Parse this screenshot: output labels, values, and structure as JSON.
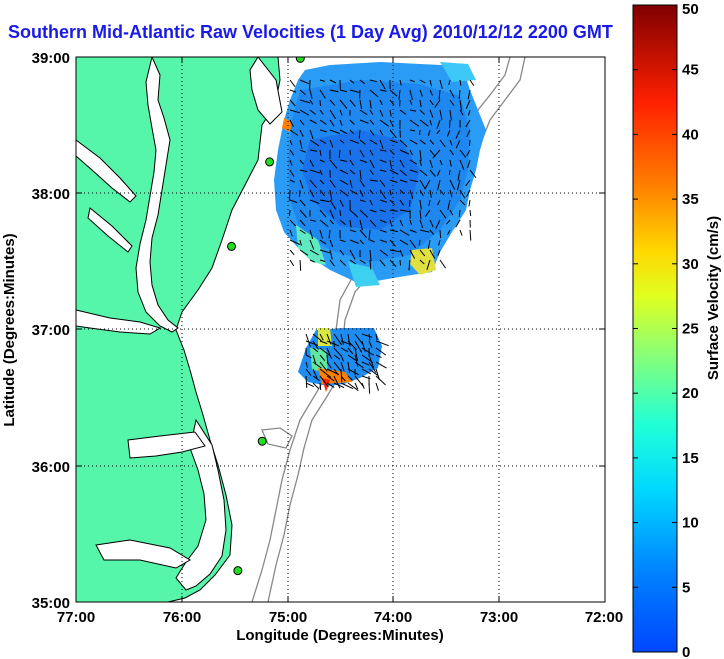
{
  "title": "Southern Mid-Atlantic Raw Velocities (1 Day Avg) 2010/12/12 2200 GMT",
  "xlabel": "Longitude (Degrees:Minutes)",
  "ylabel": "Latitude (Degrees:Minutes)",
  "colorbar_label": "Surface Velocity (cm/s)",
  "x_ticks": [
    "77:00",
    "76:00",
    "75:00",
    "74:00",
    "73:00",
    "72:00"
  ],
  "y_ticks": [
    "39:00",
    "38:00",
    "37:00",
    "36:00",
    "35:00"
  ],
  "colorbar_ticks": [
    "0",
    "5",
    "10",
    "15",
    "20",
    "25",
    "30",
    "35",
    "40",
    "45",
    "50"
  ],
  "colors": {
    "land": "#55f5aa",
    "ocean": "#ffffff",
    "title": "#1a1ae6",
    "grid": "#000000",
    "bathy": "#888888",
    "station": "#22dd22"
  },
  "chart_data": {
    "type": "heatmap",
    "title": "Southern Mid-Atlantic Raw Velocities (1 Day Avg) 2010/12/12 2200 GMT",
    "xlabel": "Longitude (Degrees:Minutes)",
    "ylabel": "Latitude (Degrees:Minutes)",
    "xlim": [
      -77,
      -72
    ],
    "ylim": [
      35,
      39
    ],
    "colorbar": {
      "label": "Surface Velocity (cm/s)",
      "range": [
        0,
        50
      ],
      "colormap": "jet"
    },
    "grid": true,
    "hf_stations": [
      {
        "lon": -74.88,
        "lat": 38.99
      },
      {
        "lon": -75.17,
        "lat": 38.23
      },
      {
        "lon": -75.53,
        "lat": 37.61
      },
      {
        "lon": -75.24,
        "lat": 36.18
      },
      {
        "lon": -75.47,
        "lat": 35.23
      }
    ]
  }
}
